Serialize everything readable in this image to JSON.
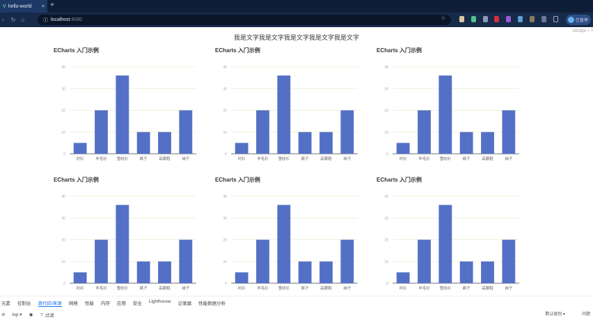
{
  "browser": {
    "tab_title": "hello-world",
    "url_host": "localhost",
    "url_port": ":8080",
    "profile": "已暂停",
    "viewport_dims": "1913px × 7"
  },
  "page": {
    "headline": "我是文字我是文字我是文字我是文字我是文字"
  },
  "devtools": {
    "tabs": [
      "元素",
      "控制台",
      "源代码/来源",
      "网络",
      "性能",
      "内存",
      "应用",
      "安全",
      "Lighthouse",
      "记录器",
      "性能数据分析"
    ],
    "active_tab": 2,
    "context": "top ▾",
    "filter": "过滤",
    "levels": "默认级别 ▾",
    "issues": "问题"
  },
  "chart_data": [
    {
      "type": "bar",
      "title": "ECharts 入门示例",
      "categories": [
        "衬衫",
        "羊毛衫",
        "雪纺衫",
        "裤子",
        "高跟鞋",
        "袜子"
      ],
      "values": [
        5,
        20,
        36,
        10,
        10,
        20
      ],
      "ylim": [
        0,
        40
      ],
      "yticks": [
        "0",
        "10",
        "20",
        "30",
        "40"
      ],
      "color": "#5470c6",
      "grid": true
    },
    {
      "type": "bar",
      "title": "ECharts 入门示例",
      "categories": [
        "衬衫",
        "羊毛衫",
        "雪纺衫",
        "裤子",
        "高跟鞋",
        "袜子"
      ],
      "values": [
        5,
        20,
        36,
        10,
        10,
        20
      ],
      "ylim": [
        0,
        40
      ],
      "yticks": [
        "0",
        "10",
        "20",
        "30",
        "40"
      ],
      "color": "#5470c6",
      "grid": true
    },
    {
      "type": "bar",
      "title": "ECharts 入门示例",
      "categories": [
        "衬衫",
        "羊毛衫",
        "雪纺衫",
        "裤子",
        "高跟鞋",
        "袜子"
      ],
      "values": [
        5,
        20,
        36,
        10,
        10,
        20
      ],
      "ylim": [
        0,
        40
      ],
      "yticks": [
        "0",
        "10",
        "20",
        "30",
        "40"
      ],
      "color": "#5470c6",
      "grid": true
    },
    {
      "type": "bar",
      "title": "ECharts 入门示例",
      "categories": [
        "衬衫",
        "羊毛衫",
        "雪纺衫",
        "裤子",
        "高跟鞋",
        "袜子"
      ],
      "values": [
        5,
        20,
        36,
        10,
        10,
        20
      ],
      "ylim": [
        0,
        40
      ],
      "yticks": [
        "0",
        "10",
        "20",
        "30",
        "40"
      ],
      "color": "#5470c6",
      "grid": true
    },
    {
      "type": "bar",
      "title": "ECharts 入门示例",
      "categories": [
        "衬衫",
        "羊毛衫",
        "雪纺衫",
        "裤子",
        "高跟鞋",
        "袜子"
      ],
      "values": [
        5,
        20,
        36,
        10,
        10,
        20
      ],
      "ylim": [
        0,
        40
      ],
      "yticks": [
        "0",
        "10",
        "20",
        "30",
        "40"
      ],
      "color": "#5470c6",
      "grid": true
    },
    {
      "type": "bar",
      "title": "ECharts 入门示例",
      "categories": [
        "衬衫",
        "羊毛衫",
        "雪纺衫",
        "裤子",
        "高跟鞋",
        "袜子"
      ],
      "values": [
        5,
        20,
        36,
        10,
        10,
        20
      ],
      "ylim": [
        0,
        40
      ],
      "yticks": [
        "0",
        "10",
        "20",
        "30",
        "40"
      ],
      "color": "#5470c6",
      "grid": true
    }
  ]
}
